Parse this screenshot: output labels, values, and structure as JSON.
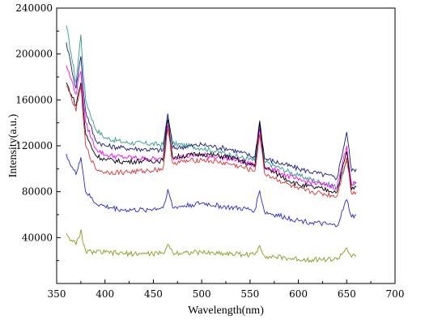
{
  "chart_data": {
    "type": "line",
    "xlabel": "Wavelength(nm)",
    "ylabel": "Intensity(a.u.)",
    "xlim": [
      350,
      700
    ],
    "ylim": [
      0,
      240000
    ],
    "x_ticks": [
      350,
      400,
      450,
      500,
      550,
      600,
      650,
      700
    ],
    "x_tick_labels": [
      "350",
      "400",
      "450",
      "500",
      "550",
      "600",
      "650",
      "700"
    ],
    "y_ticks": [
      40000,
      80000,
      120000,
      160000,
      200000,
      240000
    ],
    "y_tick_labels": [
      "40000",
      "80000",
      "120000",
      "160000",
      "200000",
      "240000"
    ],
    "grid": false,
    "legend": "none",
    "series": [
      {
        "color": "#2e9b91",
        "points": [
          [
            360,
            225000
          ],
          [
            365,
            200000
          ],
          [
            370,
            175000
          ],
          [
            373,
            200000
          ],
          [
            375,
            217000
          ],
          [
            377,
            190000
          ],
          [
            380,
            160000
          ],
          [
            390,
            135000
          ],
          [
            400,
            127000
          ],
          [
            420,
            123000
          ],
          [
            440,
            122000
          ],
          [
            460,
            121000
          ],
          [
            465,
            147000
          ],
          [
            470,
            122000
          ],
          [
            500,
            118000
          ],
          [
            530,
            112000
          ],
          [
            555,
            107000
          ],
          [
            560,
            140000
          ],
          [
            565,
            106000
          ],
          [
            600,
            94000
          ],
          [
            640,
            84000
          ],
          [
            650,
            106000
          ],
          [
            655,
            86000
          ],
          [
            660,
            88000
          ]
        ]
      },
      {
        "color": "#1a1a80",
        "points": [
          [
            360,
            210000
          ],
          [
            365,
            190000
          ],
          [
            370,
            170000
          ],
          [
            373,
            188000
          ],
          [
            375,
            198000
          ],
          [
            377,
            175000
          ],
          [
            380,
            150000
          ],
          [
            390,
            125000
          ],
          [
            400,
            120000
          ],
          [
            420,
            118000
          ],
          [
            440,
            117000
          ],
          [
            460,
            116000
          ],
          [
            465,
            148000
          ],
          [
            470,
            118000
          ],
          [
            500,
            121000
          ],
          [
            530,
            117000
          ],
          [
            555,
            110000
          ],
          [
            560,
            142000
          ],
          [
            565,
            109000
          ],
          [
            600,
            100000
          ],
          [
            640,
            92000
          ],
          [
            650,
            132000
          ],
          [
            655,
            98000
          ],
          [
            660,
            100000
          ]
        ]
      },
      {
        "color": "#ff00ff",
        "points": [
          [
            360,
            190000
          ],
          [
            365,
            178000
          ],
          [
            370,
            165000
          ],
          [
            373,
            180000
          ],
          [
            375,
            185000
          ],
          [
            377,
            165000
          ],
          [
            380,
            140000
          ],
          [
            390,
            118000
          ],
          [
            400,
            112000
          ],
          [
            420,
            110000
          ],
          [
            440,
            109000
          ],
          [
            460,
            108000
          ],
          [
            465,
            138000
          ],
          [
            470,
            110000
          ],
          [
            500,
            112000
          ],
          [
            530,
            109000
          ],
          [
            555,
            103000
          ],
          [
            560,
            135000
          ],
          [
            565,
            102000
          ],
          [
            600,
            90000
          ],
          [
            640,
            84000
          ],
          [
            650,
            120000
          ],
          [
            655,
            86000
          ],
          [
            660,
            88000
          ]
        ]
      },
      {
        "color": "#000000",
        "points": [
          [
            360,
            175000
          ],
          [
            365,
            165000
          ],
          [
            370,
            155000
          ],
          [
            373,
            168000
          ],
          [
            375,
            175000
          ],
          [
            377,
            158000
          ],
          [
            380,
            130000
          ],
          [
            390,
            112000
          ],
          [
            400,
            108000
          ],
          [
            420,
            106000
          ],
          [
            440,
            107000
          ],
          [
            460,
            107000
          ],
          [
            465,
            143000
          ],
          [
            470,
            110000
          ],
          [
            500,
            113000
          ],
          [
            530,
            110000
          ],
          [
            555,
            102000
          ],
          [
            560,
            140000
          ],
          [
            565,
            101000
          ],
          [
            600,
            86000
          ],
          [
            640,
            80000
          ],
          [
            650,
            115000
          ],
          [
            655,
            82000
          ],
          [
            660,
            84000
          ]
        ]
      },
      {
        "color": "#e03030",
        "points": [
          [
            360,
            172000
          ],
          [
            365,
            163000
          ],
          [
            370,
            150000
          ],
          [
            373,
            165000
          ],
          [
            375,
            172000
          ],
          [
            377,
            150000
          ],
          [
            380,
            120000
          ],
          [
            390,
            100000
          ],
          [
            400,
            97000
          ],
          [
            420,
            97000
          ],
          [
            440,
            98000
          ],
          [
            460,
            100000
          ],
          [
            465,
            135000
          ],
          [
            470,
            105000
          ],
          [
            500,
            108000
          ],
          [
            530,
            104000
          ],
          [
            555,
            98000
          ],
          [
            560,
            130000
          ],
          [
            565,
            96000
          ],
          [
            600,
            82000
          ],
          [
            640,
            76000
          ],
          [
            650,
            110000
          ],
          [
            655,
            78000
          ],
          [
            660,
            80000
          ]
        ]
      },
      {
        "color": "#2828d0",
        "points": [
          [
            360,
            113000
          ],
          [
            365,
            102000
          ],
          [
            370,
            95000
          ],
          [
            373,
            105000
          ],
          [
            375,
            110000
          ],
          [
            377,
            98000
          ],
          [
            380,
            80000
          ],
          [
            390,
            70000
          ],
          [
            400,
            67000
          ],
          [
            420,
            64000
          ],
          [
            440,
            64000
          ],
          [
            460,
            66000
          ],
          [
            465,
            82000
          ],
          [
            470,
            66000
          ],
          [
            500,
            70000
          ],
          [
            530,
            66000
          ],
          [
            555,
            64000
          ],
          [
            560,
            81000
          ],
          [
            565,
            62000
          ],
          [
            600,
            55000
          ],
          [
            640,
            50000
          ],
          [
            650,
            73000
          ],
          [
            655,
            58000
          ],
          [
            660,
            60000
          ]
        ]
      },
      {
        "color": "#8a9a1a",
        "points": [
          [
            360,
            44000
          ],
          [
            365,
            38000
          ],
          [
            370,
            34000
          ],
          [
            373,
            40000
          ],
          [
            375,
            47000
          ],
          [
            377,
            36000
          ],
          [
            380,
            28000
          ],
          [
            400,
            27000
          ],
          [
            420,
            26000
          ],
          [
            440,
            26000
          ],
          [
            460,
            26000
          ],
          [
            465,
            34000
          ],
          [
            470,
            27000
          ],
          [
            500,
            27000
          ],
          [
            530,
            26000
          ],
          [
            555,
            25000
          ],
          [
            560,
            33000
          ],
          [
            565,
            24000
          ],
          [
            600,
            21000
          ],
          [
            640,
            21000
          ],
          [
            650,
            31000
          ],
          [
            655,
            23000
          ],
          [
            660,
            24000
          ]
        ]
      }
    ]
  }
}
